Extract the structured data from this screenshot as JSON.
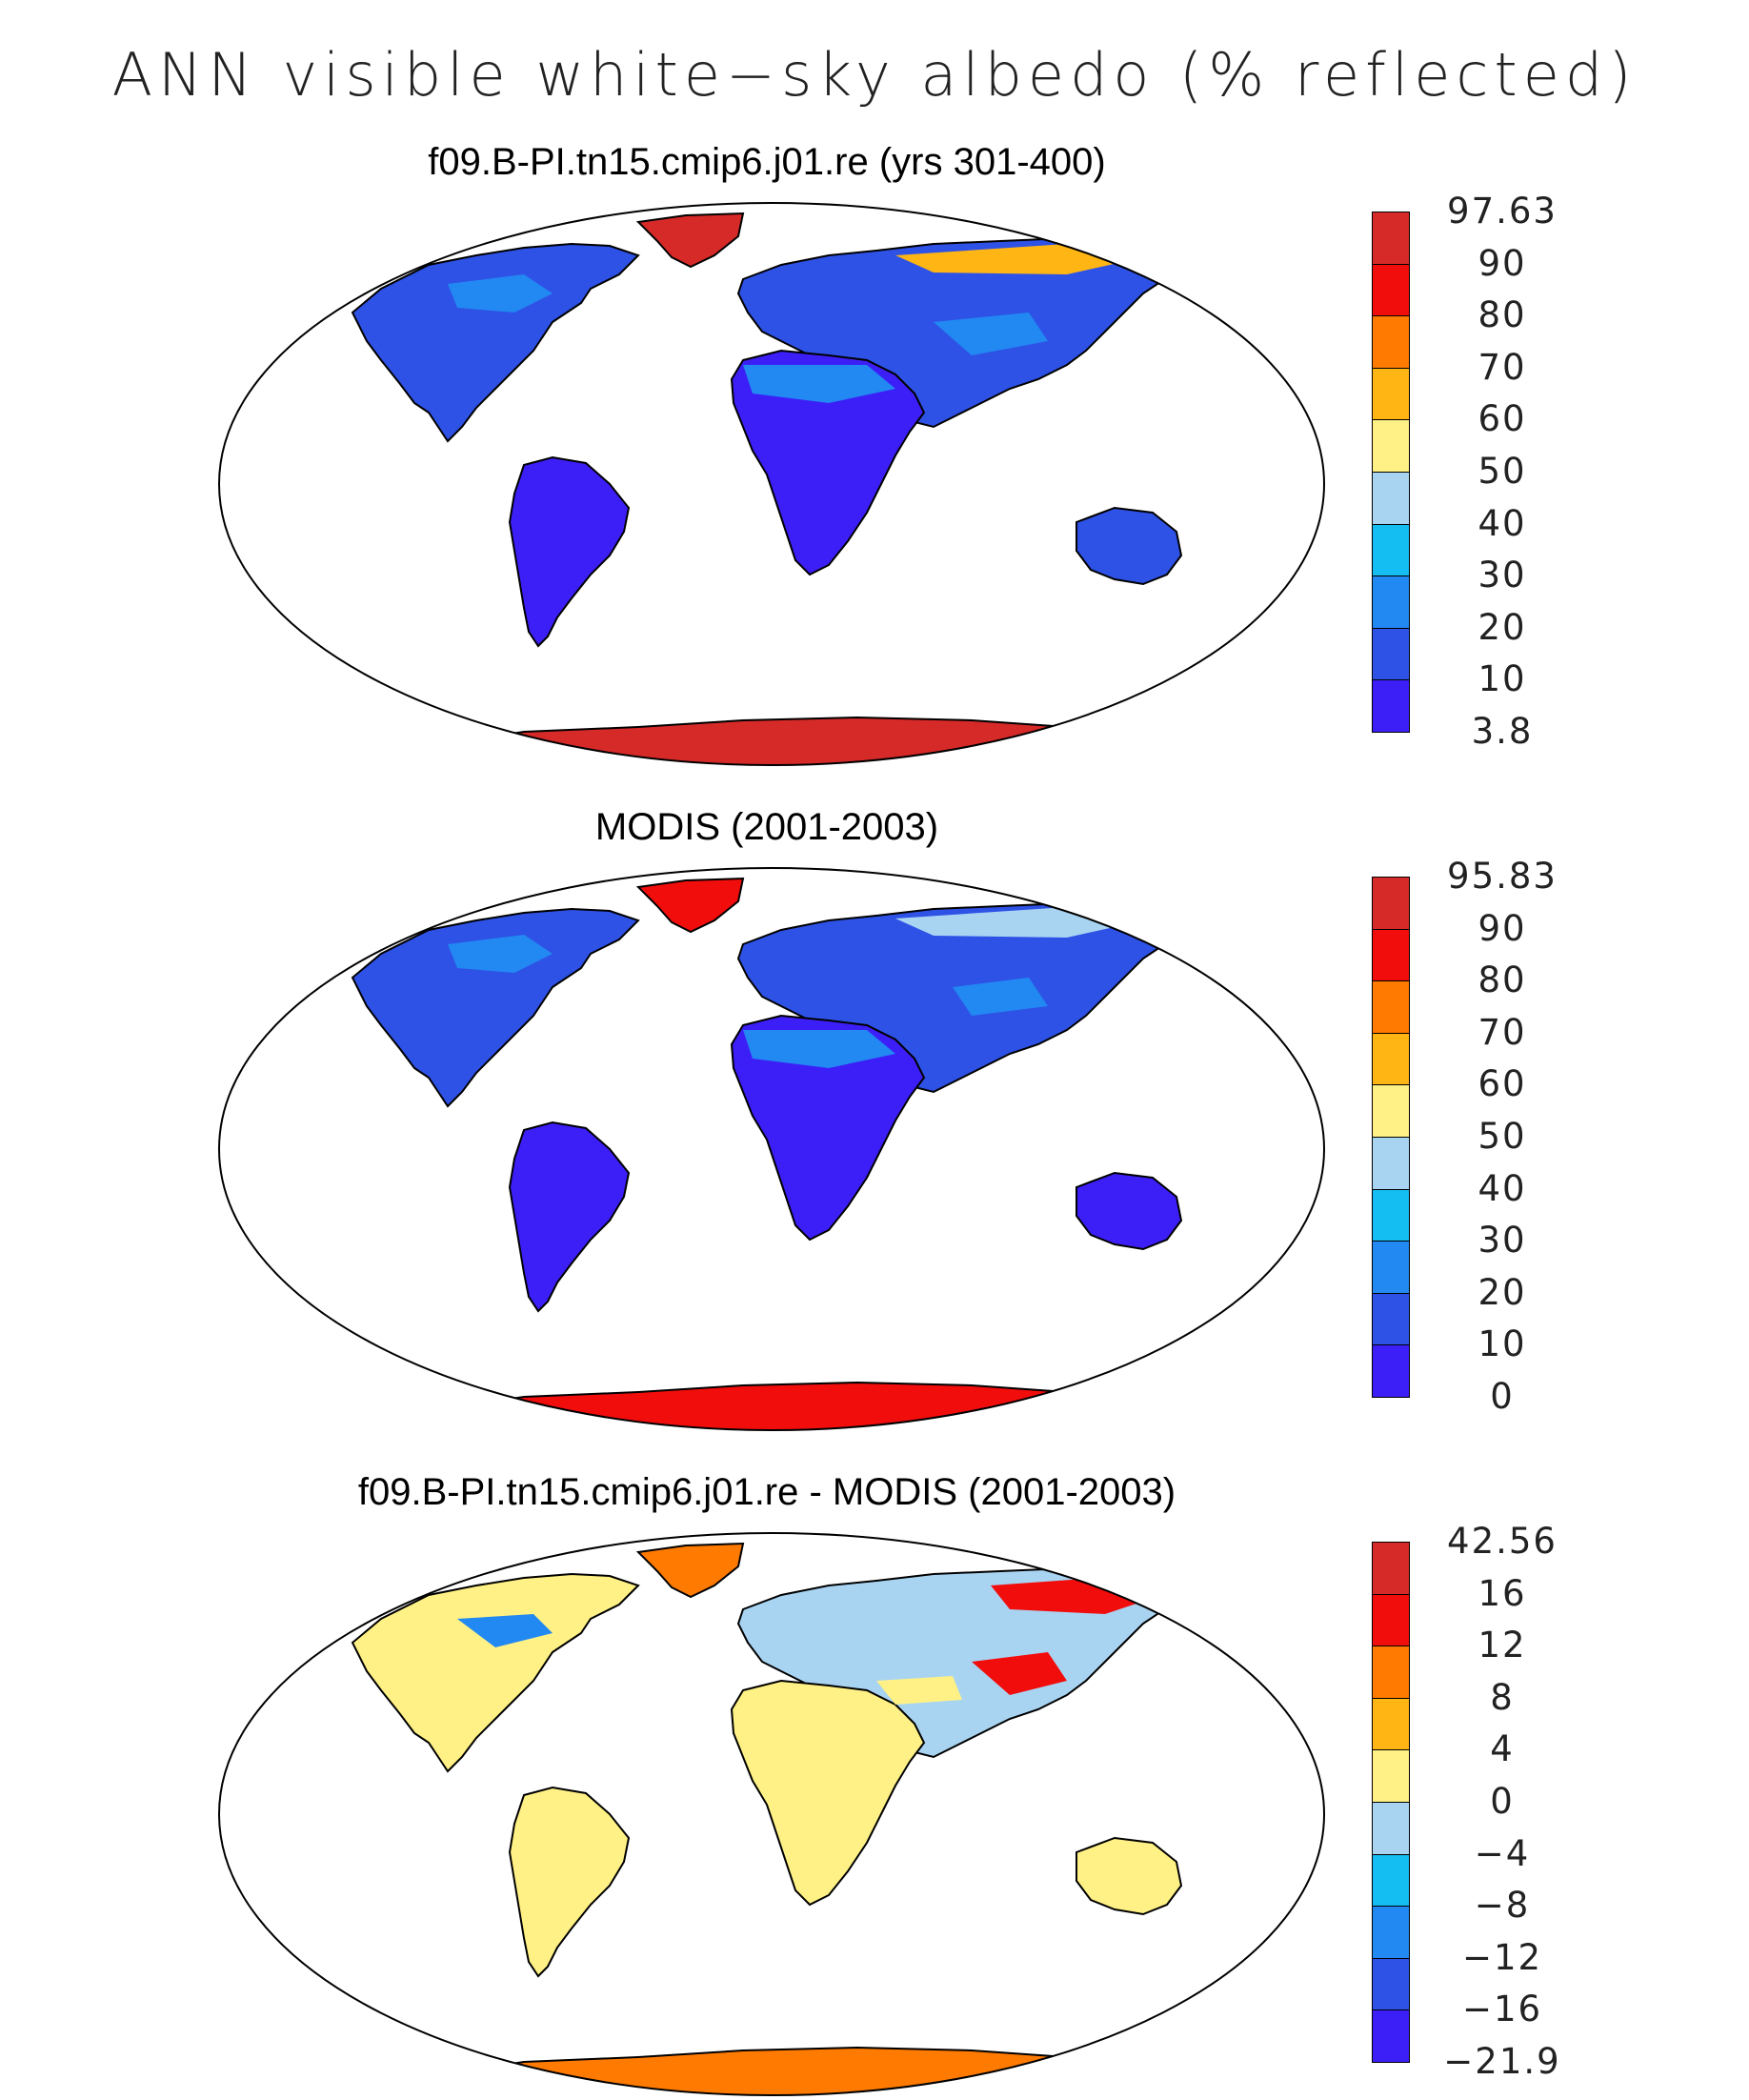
{
  "title": "ANN visible white−sky albedo (% reflected)",
  "colors": {
    "land_outline": "#000000",
    "frame": "#000000"
  },
  "panels": [
    {
      "title": "f09.B-PI.tn15.cmip6.j01.re (yrs 301-400)",
      "type": "model",
      "colorbar": {
        "labels": [
          "97.63",
          "90",
          "80",
          "70",
          "60",
          "50",
          "40",
          "30",
          "20",
          "10",
          "3.8"
        ],
        "colors": [
          "#d62a28",
          "#f20d0d",
          "#ff7a00",
          "#ffb514",
          "#fff185",
          "#a8d4f2",
          "#14bdf2",
          "#2288f2",
          "#2e52e6",
          "#3c1ff7"
        ]
      }
    },
    {
      "title": "MODIS (2001-2003)",
      "type": "obs",
      "colorbar": {
        "labels": [
          "95.83",
          "90",
          "80",
          "70",
          "60",
          "50",
          "40",
          "30",
          "20",
          "10",
          "0"
        ],
        "colors": [
          "#d62a28",
          "#f20d0d",
          "#ff7a00",
          "#ffb514",
          "#fff185",
          "#a8d4f2",
          "#14bdf2",
          "#2288f2",
          "#2e52e6",
          "#3c1ff7"
        ]
      }
    },
    {
      "title": "f09.B-PI.tn15.cmip6.j01.re - MODIS (2001-2003)",
      "type": "diff",
      "colorbar": {
        "labels": [
          "42.56",
          "16",
          "12",
          "8",
          "4",
          "0",
          "−4",
          "−8",
          "−12",
          "−16",
          "−21.9"
        ],
        "colors": [
          "#d62a28",
          "#f20d0d",
          "#ff7a00",
          "#ffb514",
          "#fff185",
          "#a8d4f2",
          "#14bdf2",
          "#2288f2",
          "#2e52e6",
          "#3c1ff7"
        ]
      }
    }
  ]
}
